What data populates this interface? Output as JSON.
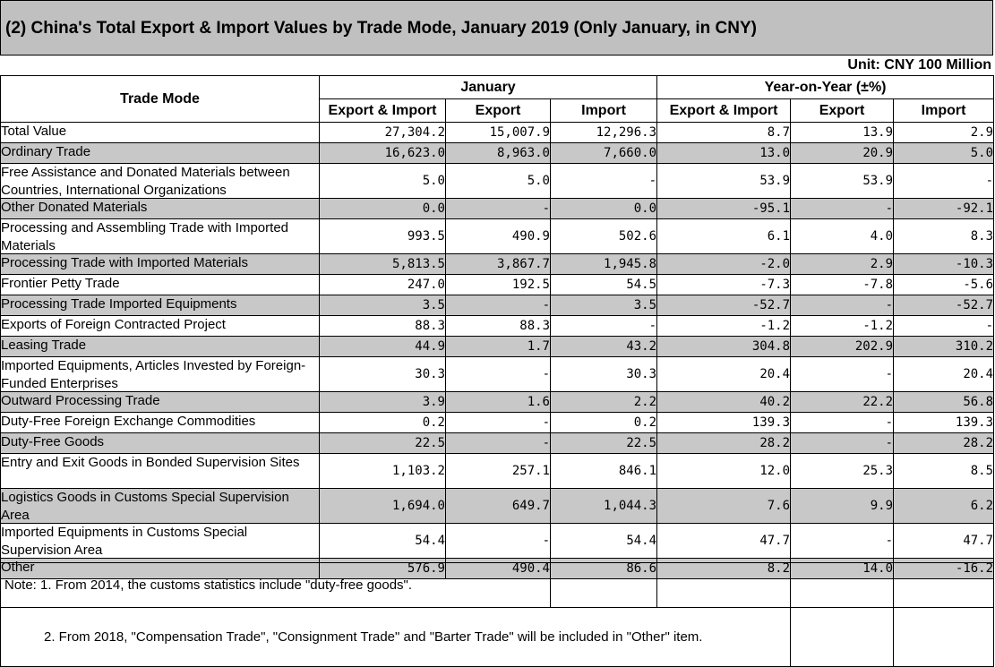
{
  "title": "(2) China's Total Export & Import Values by Trade Mode, January 2019 (Only January, in CNY)",
  "unit": "Unit: CNY 100 Million",
  "headers": {
    "trade_mode": "Trade Mode",
    "january": "January",
    "yoy": "Year-on-Year (±%)",
    "export_import": "Export & Import",
    "export": "Export",
    "import": "Import"
  },
  "rows": [
    {
      "label": "Total Value",
      "v": [
        "27,304.2",
        "15,007.9",
        "12,296.3",
        "8.7",
        "13.9",
        "2.9"
      ]
    },
    {
      "label": "Ordinary Trade",
      "v": [
        "16,623.0",
        "8,963.0",
        "7,660.0",
        "13.0",
        "20.9",
        "5.0"
      ]
    },
    {
      "label": "Free Assistance and Donated Materials between Countries, International Organizations",
      "v": [
        "5.0",
        "5.0",
        "-",
        "53.9",
        "53.9",
        "-"
      ]
    },
    {
      "label": "Other Donated Materials",
      "v": [
        "0.0",
        "-",
        "0.0",
        "-95.1",
        "-",
        "-92.1"
      ]
    },
    {
      "label": "Processing and Assembling Trade with Imported Materials",
      "v": [
        "993.5",
        "490.9",
        "502.6",
        "6.1",
        "4.0",
        "8.3"
      ]
    },
    {
      "label": "Processing Trade with Imported Materials",
      "v": [
        "5,813.5",
        "3,867.7",
        "1,945.8",
        "-2.0",
        "2.9",
        "-10.3"
      ]
    },
    {
      "label": "Frontier Petty Trade",
      "v": [
        "247.0",
        "192.5",
        "54.5",
        "-7.3",
        "-7.8",
        "-5.6"
      ]
    },
    {
      "label": "Processing Trade Imported Equipments",
      "v": [
        "3.5",
        "-",
        "3.5",
        "-52.7",
        "-",
        "-52.7"
      ]
    },
    {
      "label": "Exports of Foreign Contracted Project",
      "v": [
        "88.3",
        "88.3",
        "-",
        "-1.2",
        "-1.2",
        "-"
      ]
    },
    {
      "label": "Leasing Trade",
      "v": [
        "44.9",
        "1.7",
        "43.2",
        "304.8",
        "202.9",
        "310.2"
      ]
    },
    {
      "label": "Imported Equipments, Articles Invested by Foreign-Funded Enterprises",
      "v": [
        "30.3",
        "-",
        "30.3",
        "20.4",
        "-",
        "20.4"
      ]
    },
    {
      "label": "Outward Processing Trade",
      "v": [
        "3.9",
        "1.6",
        "2.2",
        "40.2",
        "22.2",
        "56.8"
      ]
    },
    {
      "label": "Duty-Free Foreign Exchange Commodities",
      "v": [
        "0.2",
        "-",
        "0.2",
        "139.3",
        "-",
        "139.3"
      ]
    },
    {
      "label": "Duty-Free Goods",
      "v": [
        "22.5",
        "-",
        "22.5",
        "28.2",
        "-",
        "28.2"
      ]
    },
    {
      "label": "Entry and Exit Goods in Bonded Supervision Sites",
      "v": [
        "1,103.2",
        "257.1",
        "846.1",
        "12.0",
        "25.3",
        "8.5"
      ]
    },
    {
      "label": "Logistics Goods in Customs Special Supervision Area",
      "v": [
        "1,694.0",
        "649.7",
        "1,044.3",
        "7.6",
        "9.9",
        "6.2"
      ]
    },
    {
      "label": "Imported Equipments in Customs Special Supervision Area",
      "v": [
        "54.4",
        "-",
        "54.4",
        "47.7",
        "-",
        "47.7"
      ]
    },
    {
      "label": "Other",
      "v": [
        "576.9",
        "490.4",
        "86.6",
        "8.2",
        "14.0",
        "-16.2"
      ]
    }
  ],
  "notes": {
    "note1": "Note: 1. From 2014, the customs statistics include \"duty-free goods\".",
    "note2": "2. From 2018, \"Compensation Trade\", \"Consignment Trade\" and \"Barter Trade\" will be included in \"Other\" item."
  }
}
